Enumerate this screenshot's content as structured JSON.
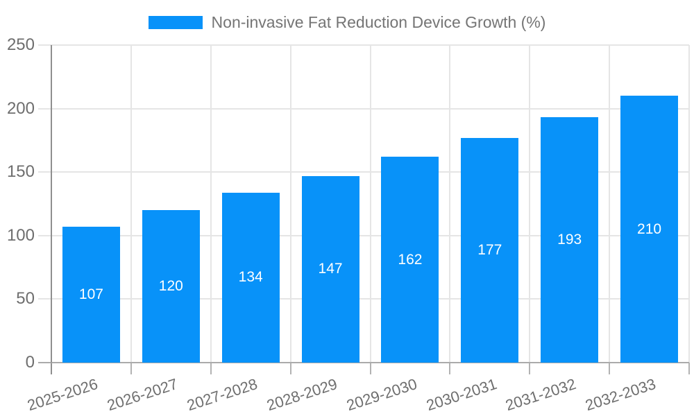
{
  "chart_data": {
    "type": "bar",
    "title": "Non-invasive Fat Reduction Device Growth (%)",
    "categories": [
      "2025-2026",
      "2026-2027",
      "2027-2028",
      "2028-2029",
      "2029-2030",
      "2030-2031",
      "2031-2032",
      "2032-2033"
    ],
    "values": [
      107,
      120,
      134,
      147,
      162,
      177,
      193,
      210
    ],
    "xlabel": "",
    "ylabel": "",
    "ylim": [
      0,
      250
    ],
    "yticks": [
      0,
      50,
      100,
      150,
      200,
      250
    ],
    "grid": true,
    "legend_position": "top-center",
    "value_label_position": "inside-middle"
  },
  "colors": {
    "bar": "#0892f9",
    "value_label": "#ffffff",
    "axis_text": "#6e6e6e",
    "legend_text": "#757575",
    "grid_line": "#e5e5e5",
    "y_axis_line": "#8f8f8f",
    "x_axis_line": "#ababab",
    "x_tick": "#b3b3b3",
    "background": "#ffffff"
  }
}
